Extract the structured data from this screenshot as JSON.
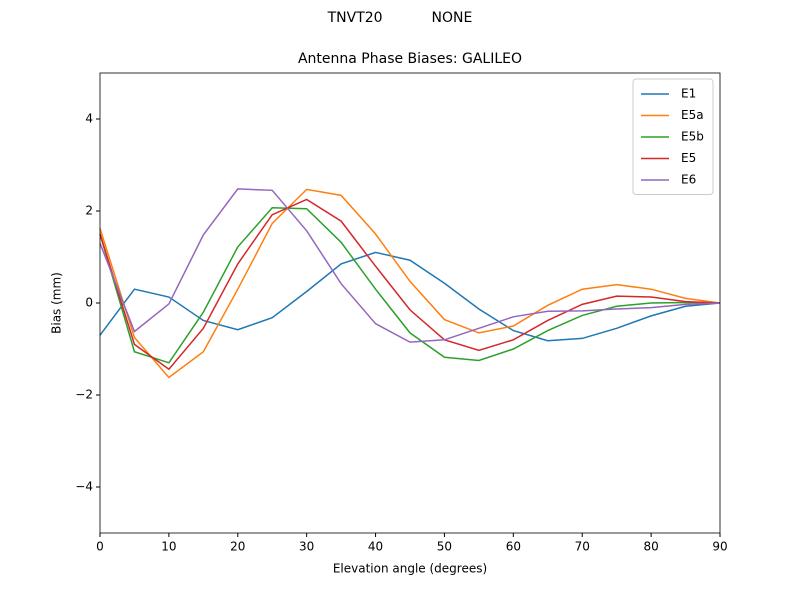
{
  "chart_data": {
    "type": "line",
    "suptitle": "TNVT20           NONE",
    "title": "Antenna Phase Biases: GALILEO",
    "xlabel": "Elevation angle (degrees)",
    "ylabel": "Bias (mm)",
    "x": [
      0,
      5,
      10,
      15,
      20,
      25,
      30,
      35,
      40,
      45,
      50,
      55,
      60,
      65,
      70,
      75,
      80,
      85,
      90
    ],
    "series": [
      {
        "name": "E1",
        "color": "#1f77b4",
        "values": [
          -0.7,
          0.3,
          0.13,
          -0.38,
          -0.58,
          -0.32,
          0.25,
          0.85,
          1.1,
          0.93,
          0.43,
          -0.13,
          -0.6,
          -0.82,
          -0.77,
          -0.55,
          -0.28,
          -0.07,
          0
        ]
      },
      {
        "name": "E5a",
        "color": "#ff7f0e",
        "values": [
          1.62,
          -0.75,
          -1.62,
          -1.06,
          0.3,
          1.73,
          2.47,
          2.34,
          1.5,
          0.47,
          -0.36,
          -0.65,
          -0.5,
          -0.05,
          0.3,
          0.4,
          0.3,
          0.1,
          0
        ]
      },
      {
        "name": "E5b",
        "color": "#2ca02c",
        "values": [
          1.5,
          -1.06,
          -1.3,
          -0.2,
          1.22,
          2.07,
          2.05,
          1.32,
          0.3,
          -0.65,
          -1.18,
          -1.25,
          -1.0,
          -0.6,
          -0.27,
          -0.07,
          0.0,
          0.01,
          0
        ]
      },
      {
        "name": "E5",
        "color": "#d62728",
        "values": [
          1.5,
          -0.9,
          -1.44,
          -0.55,
          0.85,
          1.92,
          2.25,
          1.78,
          0.8,
          -0.15,
          -0.8,
          -1.03,
          -0.8,
          -0.38,
          -0.03,
          0.15,
          0.13,
          0.03,
          0
        ]
      },
      {
        "name": "E6",
        "color": "#9467bd",
        "values": [
          1.3,
          -0.62,
          -0.02,
          1.48,
          2.48,
          2.45,
          1.57,
          0.42,
          -0.45,
          -0.85,
          -0.8,
          -0.55,
          -0.3,
          -0.18,
          -0.17,
          -0.13,
          -0.1,
          -0.03,
          0
        ]
      }
    ],
    "xlim": [
      0,
      90
    ],
    "xticks": [
      0,
      10,
      20,
      30,
      40,
      50,
      60,
      70,
      80,
      90
    ],
    "ylim": [
      -5,
      5
    ],
    "yticks": [
      {
        "value": -4,
        "label": "−4"
      },
      {
        "value": -2,
        "label": "−2"
      },
      0,
      2,
      4
    ],
    "legend": "upper right"
  }
}
